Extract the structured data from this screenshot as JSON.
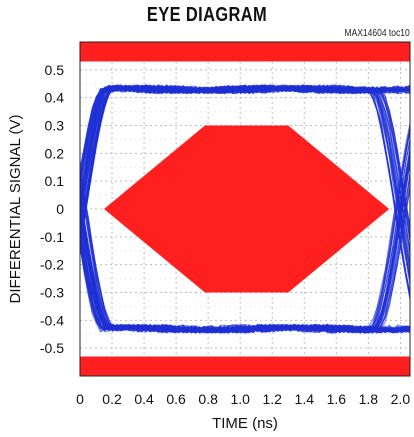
{
  "figure_id": "MAX14604 toc10",
  "colors": {
    "eye_trace": "#1f2fd6",
    "mask": "#ff1f1f",
    "grid": "#bdbdbd"
  },
  "chart_data": {
    "type": "line",
    "title": "EYE DIAGRAM",
    "xlabel": "TIME (ns)",
    "ylabel": "DIFFERENTIAL SIGNAL (V)",
    "xlim": [
      0,
      2.06
    ],
    "ylim": [
      -0.6,
      0.6
    ],
    "x_ticks": [
      "0",
      "0.2",
      "0.4",
      "0.6",
      "0.8",
      "1.0",
      "1.2",
      "1.4",
      "1.6",
      "1.8",
      "2.0"
    ],
    "x_tick_values": [
      0,
      0.2,
      0.4,
      0.6,
      0.8,
      1.0,
      1.2,
      1.4,
      1.6,
      1.8,
      2.0
    ],
    "y_ticks": [
      "0.5",
      "0.4",
      "0.3",
      "0.2",
      "0.1",
      "0",
      "-0.1",
      "-0.2",
      "-0.3",
      "-0.4",
      "-0.5"
    ],
    "y_tick_values": [
      0.5,
      0.4,
      0.3,
      0.2,
      0.1,
      0,
      -0.1,
      -0.2,
      -0.3,
      -0.4,
      -0.5
    ],
    "grid": true,
    "eye": {
      "high_level_v": 0.43,
      "low_level_v": -0.43,
      "crossing_left_ns": 0.0,
      "crossing_right_ns": 2.0
    },
    "mask": {
      "polygon": [
        [
          0.15,
          0
        ],
        [
          0.78,
          0.3
        ],
        [
          1.3,
          0.3
        ],
        [
          1.93,
          0
        ],
        [
          1.3,
          -0.3
        ],
        [
          0.78,
          -0.3
        ]
      ],
      "top_band": [
        0.53,
        0.6
      ],
      "bottom_band": [
        -0.6,
        -0.53
      ]
    }
  }
}
